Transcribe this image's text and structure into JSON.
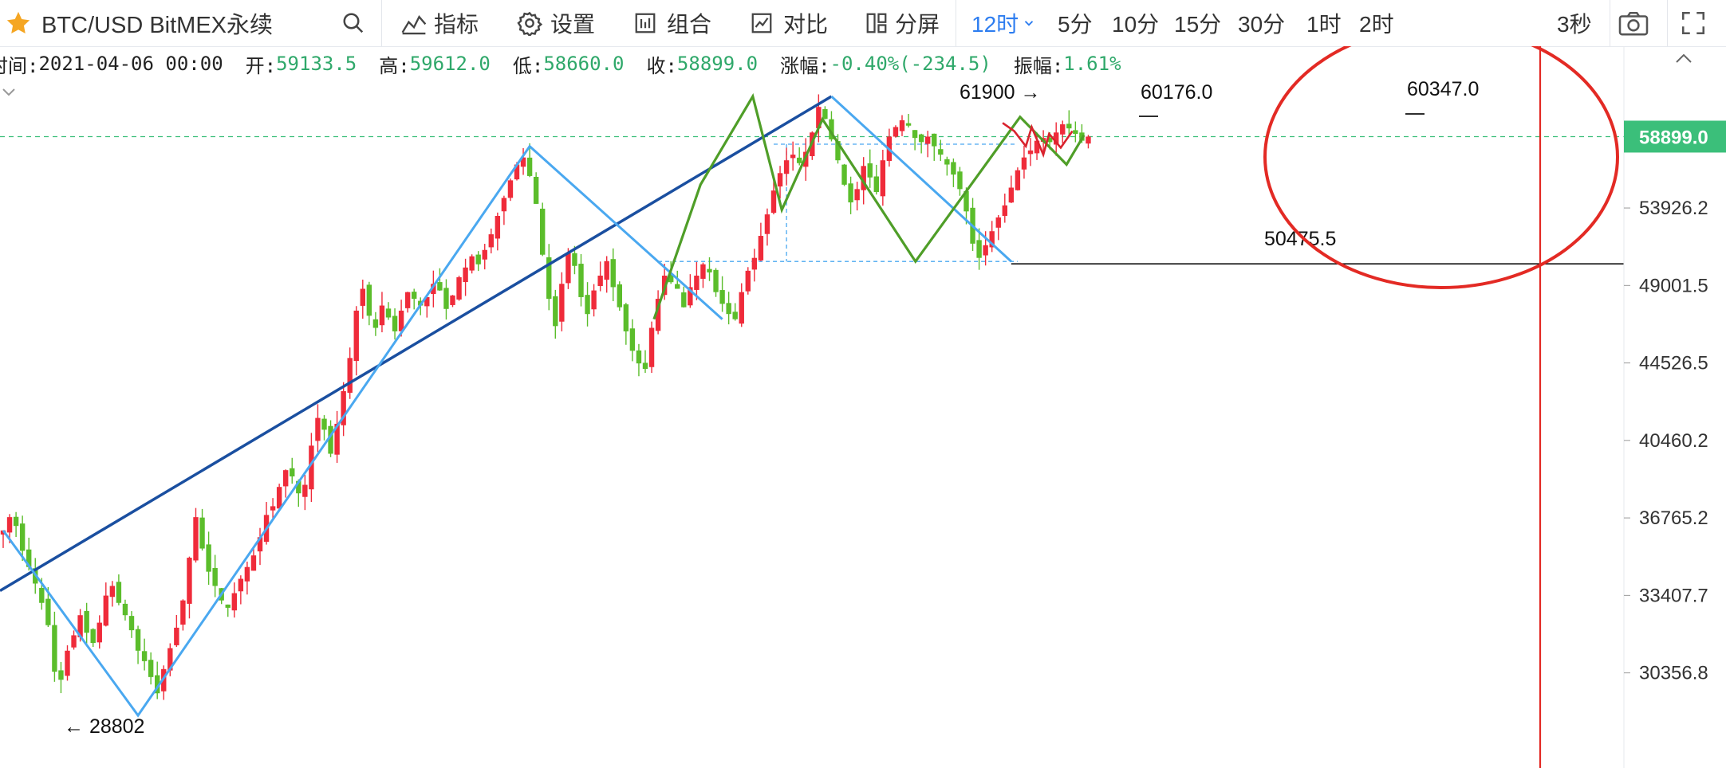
{
  "toolbar": {
    "symbol": "BTC/USD BitMEX永续",
    "indicator_label": "指标",
    "settings_label": "设置",
    "combine_label": "组合",
    "compare_label": "对比",
    "split_label": "分屏",
    "intervals": [
      "12时",
      "5分",
      "10分",
      "15分",
      "30分",
      "1时",
      "2时"
    ],
    "refresh_label": "3秒",
    "colors": {
      "accent": "#2d7df0",
      "star": "#f5a623"
    }
  },
  "infobar": {
    "time_label": "时间:",
    "time_value": "2021-04-06 00:00",
    "open_label": "开:",
    "open_value": "59133.5",
    "high_label": "高:",
    "high_value": "59612.0",
    "low_label": "低:",
    "low_value": "58660.0",
    "close_label": "收:",
    "close_value": "58899.0",
    "change_label": "涨幅:",
    "change_value": "-0.40%(-234.5)",
    "amplitude_label": "振幅:",
    "amplitude_value": "1.61%"
  },
  "chart_data": {
    "type": "candlestick",
    "title": "",
    "y_ticks": [
      53926.2,
      49001.5,
      44526.5,
      40460.2,
      36765.2,
      33407.7,
      30356.8
    ],
    "y_tick_labels": [
      "53926.2",
      "49001.5",
      "44526.5",
      "40460.2",
      "36765.2",
      "33407.7",
      "30356.8"
    ],
    "ylim": [
      28000,
      62600
    ],
    "y_scale": "log",
    "current_price": 58899.0,
    "current_price_label": "58899.0",
    "candle_count": 170,
    "colors": {
      "up": "#ef2b3a",
      "down": "#5bbd2b",
      "blue_zigzag": "#4aa8f0",
      "trendline": "#1a4fa0",
      "green_zigzag": "#4f9e28",
      "red_zigzag": "#d9232e",
      "circle": "#e32a24",
      "marker_line": "#e32a24",
      "price_tag": "#3bbf7a"
    },
    "annotations": [
      {
        "label": "← 28802",
        "value": 28802
      },
      {
        "label": "61900 →",
        "value": 61900
      },
      {
        "label": "60176.0",
        "value": 60176.0
      },
      {
        "label": "50475.5",
        "value": 50475.5
      },
      {
        "label": "60347.0",
        "value": 60347.0
      }
    ],
    "reference_levels": {
      "upper": 58350,
      "lower": 50475.5
    }
  }
}
